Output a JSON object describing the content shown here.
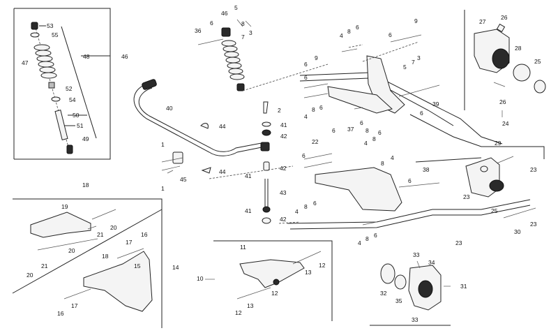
{
  "colors": {
    "line": "#222222",
    "background": "#ffffff",
    "part_fill": "#f4f4f4",
    "part_dark": "#2a2a2a"
  },
  "callouts": [
    {
      "id": "c53",
      "text": "53"
    },
    {
      "id": "c55",
      "text": "55"
    },
    {
      "id": "c48",
      "text": "48"
    },
    {
      "id": "c46a",
      "text": "46"
    },
    {
      "id": "c47",
      "text": "47"
    },
    {
      "id": "c52",
      "text": "52"
    },
    {
      "id": "c54",
      "text": "54"
    },
    {
      "id": "c50",
      "text": "50"
    },
    {
      "id": "c51",
      "text": "51"
    },
    {
      "id": "c49",
      "text": "49"
    },
    {
      "id": "c6a",
      "text": "6"
    },
    {
      "id": "c46b",
      "text": "46"
    },
    {
      "id": "c5a",
      "text": "5"
    },
    {
      "id": "c36",
      "text": "36"
    },
    {
      "id": "c8a",
      "text": "8"
    },
    {
      "id": "c7a",
      "text": "7"
    },
    {
      "id": "c3a",
      "text": "3"
    },
    {
      "id": "c9a",
      "text": "9"
    },
    {
      "id": "c4a",
      "text": "4"
    },
    {
      "id": "c8b",
      "text": "8"
    },
    {
      "id": "c6b",
      "text": "6"
    },
    {
      "id": "c6c",
      "text": "6"
    },
    {
      "id": "c7b",
      "text": "7"
    },
    {
      "id": "c3b",
      "text": "3"
    },
    {
      "id": "c5b",
      "text": "5"
    },
    {
      "id": "c9b",
      "text": "9"
    },
    {
      "id": "c6d",
      "text": "6"
    },
    {
      "id": "c6e",
      "text": "6"
    },
    {
      "id": "c40",
      "text": "40"
    },
    {
      "id": "c4b",
      "text": "4"
    },
    {
      "id": "c8c",
      "text": "8"
    },
    {
      "id": "c6f",
      "text": "6"
    },
    {
      "id": "c39",
      "text": "39"
    },
    {
      "id": "c6g",
      "text": "6"
    },
    {
      "id": "c2",
      "text": "2"
    },
    {
      "id": "c37",
      "text": "37"
    },
    {
      "id": "c6h",
      "text": "6"
    },
    {
      "id": "c8d",
      "text": "8"
    },
    {
      "id": "c6i",
      "text": "6"
    },
    {
      "id": "c44a",
      "text": "44"
    },
    {
      "id": "c41a",
      "text": "41"
    },
    {
      "id": "c42a",
      "text": "42"
    },
    {
      "id": "c22",
      "text": "22"
    },
    {
      "id": "c6j",
      "text": "6"
    },
    {
      "id": "c4c",
      "text": "4"
    },
    {
      "id": "c8e",
      "text": "8"
    },
    {
      "id": "c6k",
      "text": "6"
    },
    {
      "id": "c4d",
      "text": "4"
    },
    {
      "id": "c8f",
      "text": "8"
    },
    {
      "id": "c1a",
      "text": "1"
    },
    {
      "id": "c44b",
      "text": "44"
    },
    {
      "id": "c45",
      "text": "45"
    },
    {
      "id": "c1b",
      "text": "1"
    },
    {
      "id": "c41b",
      "text": "41"
    },
    {
      "id": "c42b",
      "text": "42"
    },
    {
      "id": "c43",
      "text": "43"
    },
    {
      "id": "c41c",
      "text": "41"
    },
    {
      "id": "c42c",
      "text": "42"
    },
    {
      "id": "c38",
      "text": "38"
    },
    {
      "id": "c6l",
      "text": "6"
    },
    {
      "id": "c4e",
      "text": "4"
    },
    {
      "id": "c8g",
      "text": "8"
    },
    {
      "id": "c6m",
      "text": "6"
    },
    {
      "id": "c4f",
      "text": "4"
    },
    {
      "id": "c8h",
      "text": "8"
    },
    {
      "id": "c6n",
      "text": "6"
    },
    {
      "id": "c18",
      "text": "18"
    },
    {
      "id": "c19",
      "text": "19"
    },
    {
      "id": "c20a",
      "text": "20"
    },
    {
      "id": "c21a",
      "text": "21"
    },
    {
      "id": "c20b",
      "text": "20"
    },
    {
      "id": "c21b",
      "text": "21"
    },
    {
      "id": "c16a",
      "text": "16"
    },
    {
      "id": "c17a",
      "text": "17"
    },
    {
      "id": "c15",
      "text": "15"
    },
    {
      "id": "c18b",
      "text": "18"
    },
    {
      "id": "c20c",
      "text": "20"
    },
    {
      "id": "c14",
      "text": "14"
    },
    {
      "id": "c17b",
      "text": "17"
    },
    {
      "id": "c16b",
      "text": "16"
    },
    {
      "id": "c11",
      "text": "11"
    },
    {
      "id": "c12a",
      "text": "12"
    },
    {
      "id": "c13a",
      "text": "13"
    },
    {
      "id": "c10",
      "text": "10"
    },
    {
      "id": "c12b",
      "text": "12"
    },
    {
      "id": "c13b",
      "text": "13"
    },
    {
      "id": "c12c",
      "text": "12"
    },
    {
      "id": "c27",
      "text": "27"
    },
    {
      "id": "c26a",
      "text": "26"
    },
    {
      "id": "c28a",
      "text": "28"
    },
    {
      "id": "c25a",
      "text": "25"
    },
    {
      "id": "c26b",
      "text": "26"
    },
    {
      "id": "c24",
      "text": "24"
    },
    {
      "id": "c29",
      "text": "29"
    },
    {
      "id": "c23a",
      "text": "23"
    },
    {
      "id": "c23b",
      "text": "23"
    },
    {
      "id": "c25b",
      "text": "25"
    },
    {
      "id": "c30",
      "text": "30"
    },
    {
      "id": "c23c",
      "text": "23"
    },
    {
      "id": "c23d",
      "text": "23"
    },
    {
      "id": "c33a",
      "text": "33"
    },
    {
      "id": "c34",
      "text": "34"
    },
    {
      "id": "c31",
      "text": "31"
    },
    {
      "id": "c32",
      "text": "32"
    },
    {
      "id": "c35",
      "text": "35"
    },
    {
      "id": "c33b",
      "text": "33"
    }
  ]
}
